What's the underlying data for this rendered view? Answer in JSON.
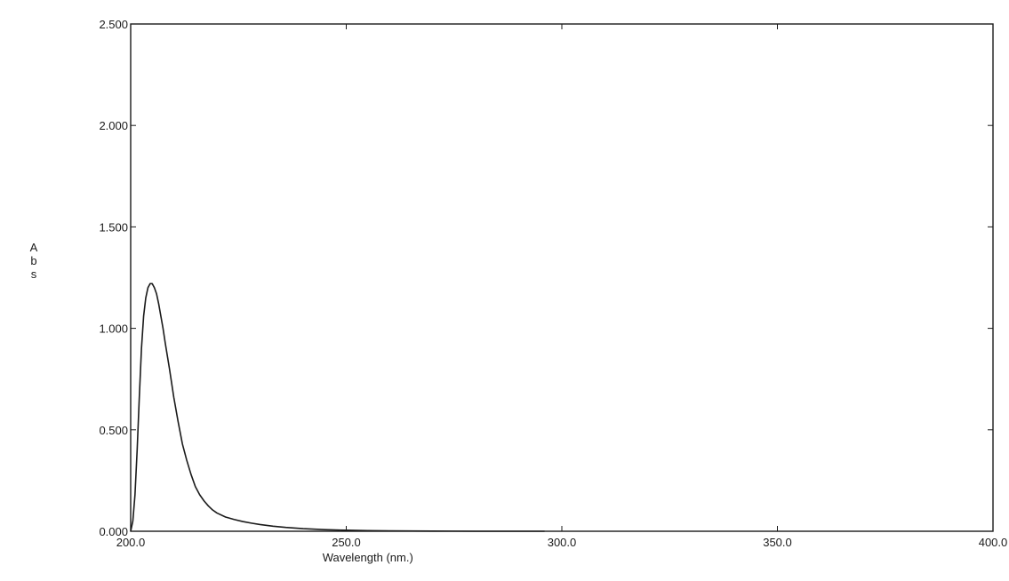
{
  "chart_data": {
    "type": "line",
    "title": "",
    "xlabel": "Wavelength (nm.)",
    "ylabel": "Abs",
    "xlim": [
      200.0,
      400.0
    ],
    "ylim": [
      0.0,
      2.5
    ],
    "x_ticks": [
      {
        "value": 200.0,
        "label": "200.0"
      },
      {
        "value": 250.0,
        "label": "250.0"
      },
      {
        "value": 300.0,
        "label": "300.0"
      },
      {
        "value": 350.0,
        "label": "350.0"
      },
      {
        "value": 400.0,
        "label": "400.0"
      }
    ],
    "y_ticks": [
      {
        "value": 0.0,
        "label": "0.000"
      },
      {
        "value": 0.5,
        "label": "0.500"
      },
      {
        "value": 1.0,
        "label": "1.000"
      },
      {
        "value": 1.5,
        "label": "1.500"
      },
      {
        "value": 2.0,
        "label": "2.000"
      },
      {
        "value": 2.5,
        "label": "2.500"
      }
    ],
    "grid": false,
    "legend": "none",
    "line_color": "#1a1a1a",
    "series": [
      {
        "x": [
          200.0,
          200.5,
          201.0,
          201.5,
          202.0,
          202.5,
          203.0,
          203.5,
          204.0,
          204.5,
          205.0,
          205.5,
          206.0,
          206.5,
          207.0,
          207.5,
          208.0,
          209.0,
          210.0,
          211.0,
          212.0,
          213.0,
          214.0,
          215.0,
          216.0,
          217.0,
          218.0,
          219.0,
          220.0,
          222.0,
          224.0,
          226.0,
          228.0,
          230.0,
          233.0,
          236.0,
          240.0,
          245.0,
          250.0,
          255.0,
          260.0,
          270.0,
          280.0,
          290.0,
          296.0
        ],
        "values": [
          0.0,
          0.05,
          0.18,
          0.4,
          0.66,
          0.9,
          1.06,
          1.15,
          1.2,
          1.22,
          1.22,
          1.2,
          1.17,
          1.12,
          1.06,
          1.0,
          0.93,
          0.8,
          0.66,
          0.54,
          0.43,
          0.35,
          0.28,
          0.22,
          0.18,
          0.15,
          0.125,
          0.105,
          0.09,
          0.07,
          0.058,
          0.048,
          0.04,
          0.033,
          0.025,
          0.019,
          0.013,
          0.008,
          0.005,
          0.003,
          0.002,
          0.001,
          0.0,
          0.0,
          0.0
        ]
      }
    ]
  }
}
